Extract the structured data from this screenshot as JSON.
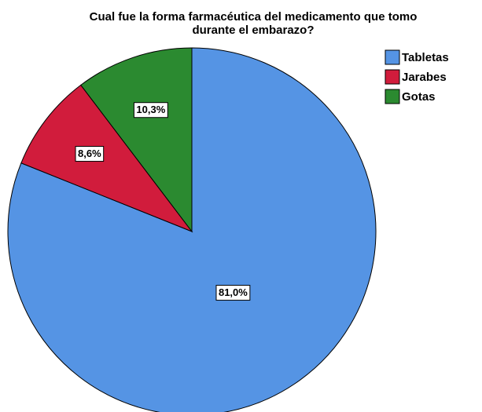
{
  "chart_data": {
    "type": "pie",
    "title": [
      "Cual fue la forma farmacéutica del medicamento que tomo",
      "durante el embarazo?"
    ],
    "categories": [
      "Tabletas",
      "Jarabes",
      "Gotas"
    ],
    "values": [
      81.0,
      8.6,
      10.3
    ],
    "value_labels": [
      "81,0%",
      "8,6%",
      "10,3%"
    ],
    "colors": [
      "#5594e4",
      "#d11c3c",
      "#2b8a30"
    ],
    "legend": "upper right"
  }
}
